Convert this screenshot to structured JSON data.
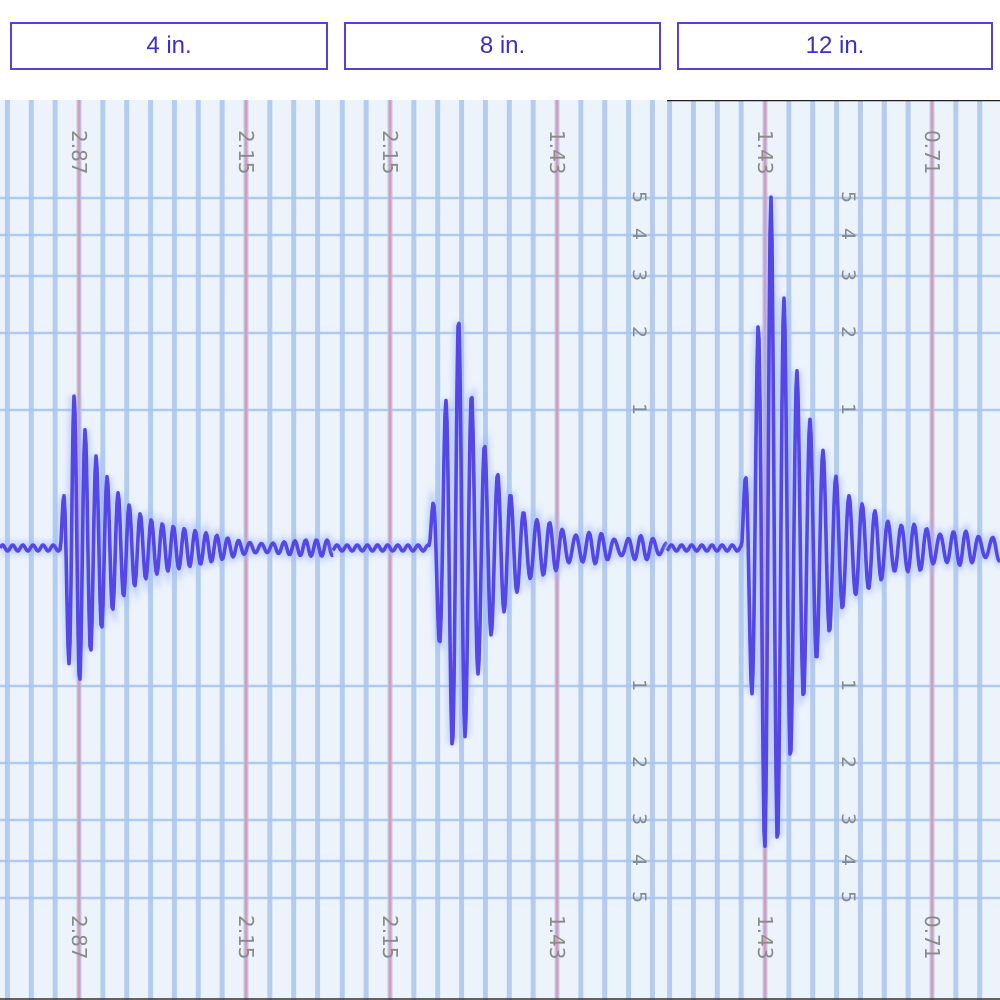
{
  "tabs": [
    {
      "label": "4 in."
    },
    {
      "label": "8 in."
    },
    {
      "label": "12 in."
    }
  ],
  "colors": {
    "tab_border": "#5540d8",
    "tab_text": "#3d2fc4",
    "paper": "#edf3fb",
    "grid_blue": "#a9c6ef",
    "grid_red": "#e497b0",
    "trace": "#5547e6",
    "trace_glow": "#9fb8ff",
    "label": "#8a8a8a"
  },
  "chart_data": {
    "type": "line",
    "title": "",
    "xlabel": "",
    "ylabel": "",
    "panels": [
      {
        "name": "4 in.",
        "time_labels": [
          "2.87",
          "2.15"
        ],
        "amplitude_labels": [],
        "events": [
          {
            "onset_time": 2.95,
            "peak_amplitude": 1.1,
            "duration_s": 0.8
          }
        ]
      },
      {
        "name": "8 in.",
        "time_labels": [
          "2.15",
          "1.43"
        ],
        "amplitude_labels": [
          "5",
          "4",
          "3",
          "2",
          "1",
          "1",
          "2",
          "3",
          "4",
          "5"
        ],
        "events": [
          {
            "onset_time": 1.98,
            "peak_amplitude": 2.1,
            "duration_s": 0.5
          }
        ]
      },
      {
        "name": "12 in.",
        "time_labels": [
          "1.43",
          "0.71"
        ],
        "amplitude_labels": [
          "5",
          "4",
          "3",
          "2",
          "1",
          "1",
          "2",
          "3",
          "4",
          "5"
        ],
        "events": [
          {
            "onset_time": 1.53,
            "peak_amplitude": 4.6,
            "duration_s": 0.95
          }
        ]
      }
    ],
    "grid": true,
    "legend": "none"
  }
}
